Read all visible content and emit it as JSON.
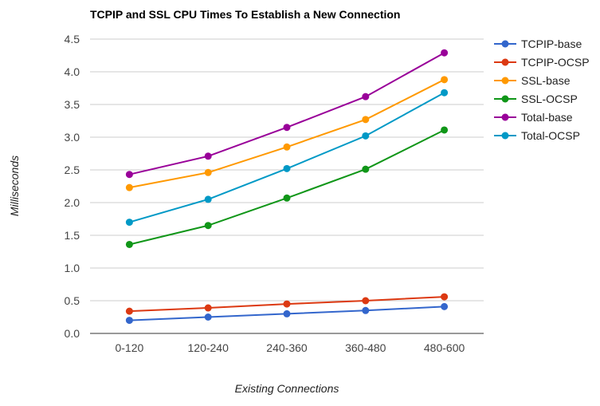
{
  "chart_data": {
    "type": "line",
    "title": "TCPIP and SSL CPU Times To Establish a New Connection",
    "xlabel": "Existing Connections",
    "ylabel": "Milliseconds",
    "categories": [
      "0-120",
      "120-240",
      "240-360",
      "360-480",
      "480-600"
    ],
    "ylim": [
      0,
      4.5
    ],
    "yticks": [
      "0.0",
      "0.5",
      "1.0",
      "1.5",
      "2.0",
      "2.5",
      "3.0",
      "3.5",
      "4.0",
      "4.5"
    ],
    "grid": true,
    "legend_position": "right",
    "series": [
      {
        "name": "TCPIP-base",
        "color": "#3366cc",
        "values": [
          0.2,
          0.25,
          0.3,
          0.35,
          0.41
        ]
      },
      {
        "name": "TCPIP-OCSP",
        "color": "#dc3912",
        "values": [
          0.34,
          0.39,
          0.45,
          0.5,
          0.56
        ]
      },
      {
        "name": "SSL-base",
        "color": "#ff9900",
        "values": [
          2.23,
          2.46,
          2.85,
          3.27,
          3.88
        ]
      },
      {
        "name": "SSL-OCSP",
        "color": "#109618",
        "values": [
          1.36,
          1.65,
          2.07,
          2.51,
          3.11
        ]
      },
      {
        "name": "Total-base",
        "color": "#990099",
        "values": [
          2.43,
          2.71,
          3.15,
          3.62,
          4.29
        ]
      },
      {
        "name": "Total-OCSP",
        "color": "#0099c6",
        "values": [
          1.7,
          2.05,
          2.52,
          3.02,
          3.68
        ]
      }
    ]
  }
}
